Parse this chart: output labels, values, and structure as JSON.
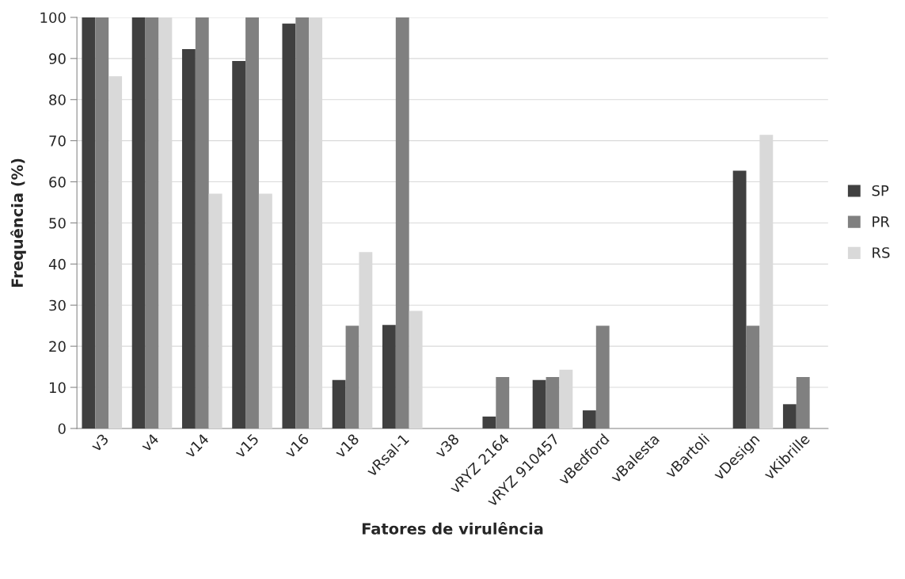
{
  "chart_data": {
    "type": "bar",
    "xlabel": "Fatores de virulência",
    "ylabel": "Frequência (%)",
    "categories": [
      "v3",
      "v4",
      "v14",
      "v15",
      "v16",
      "v18",
      "vRsal-1",
      "v38",
      "vRYZ 2164",
      "vRYZ 910457",
      "vBedford",
      "vBalesta",
      "vBartoli",
      "vDesign",
      "vKibrille"
    ],
    "series": [
      {
        "name": "SP",
        "color": "#404040",
        "values": [
          100,
          100,
          92.3,
          89.4,
          98.5,
          11.8,
          25.2,
          0,
          2.9,
          11.8,
          4.4,
          0,
          0,
          62.7,
          5.9
        ]
      },
      {
        "name": "PR",
        "color": "#808080",
        "values": [
          100,
          100,
          100,
          100,
          100,
          25,
          100,
          0,
          12.5,
          12.5,
          25,
          0,
          0,
          25,
          12.5
        ]
      },
      {
        "name": "RS",
        "color": "#d9d9d9",
        "values": [
          85.7,
          100,
          57.1,
          57.1,
          100,
          42.9,
          28.6,
          0,
          0,
          14.3,
          0,
          0,
          0,
          71.4,
          0
        ]
      }
    ],
    "ylim": [
      0,
      100
    ],
    "yticks": [
      0,
      10,
      20,
      30,
      40,
      50,
      60,
      70,
      80,
      90,
      100
    ],
    "grid": "y",
    "legend": "right"
  }
}
